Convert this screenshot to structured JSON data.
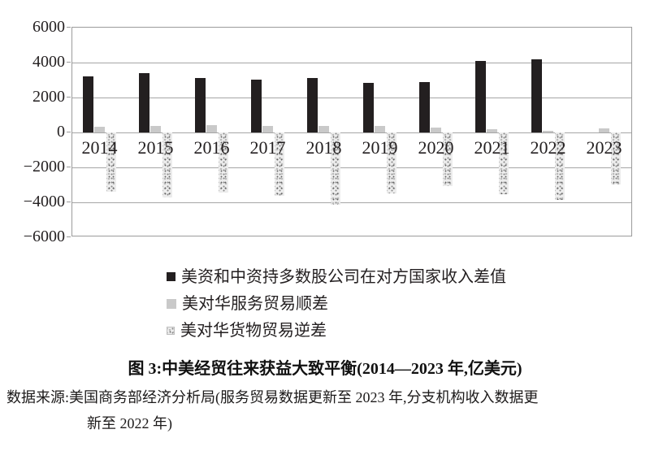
{
  "chart_data": {
    "type": "bar",
    "categories": [
      "2014",
      "2015",
      "2016",
      "2017",
      "2018",
      "2019",
      "2020",
      "2021",
      "2022",
      "2023"
    ],
    "series": [
      {
        "name": "美资和中资持多数股公司在对方国家收入差值",
        "color": "#231f20",
        "style": "solid",
        "values": [
          3220,
          3400,
          3120,
          3010,
          3110,
          2850,
          2880,
          4100,
          4190,
          null
        ]
      },
      {
        "name": "美对华服务贸易顺差",
        "color": "#c9c9c9",
        "style": "solid",
        "values": [
          330,
          360,
          430,
          390,
          390,
          350,
          260,
          190,
          100,
          230
        ]
      },
      {
        "name": "美对华货物贸易逆差",
        "color": "#ededed",
        "style": "speckle",
        "values": [
          -3380,
          -3710,
          -3450,
          -3650,
          -4140,
          -3470,
          -3090,
          -3520,
          -3870,
          -2980
        ]
      }
    ],
    "title": "图 3:中美经贸往来获益大致平衡(2014—2023 年,亿美元)",
    "xlabel": "",
    "ylabel": "",
    "ylim": [
      -6000,
      6000
    ],
    "grid": true,
    "legend_position": "below",
    "y_ticks": [
      {
        "label": "6000",
        "value": 6000
      },
      {
        "label": "4000",
        "value": 4000
      },
      {
        "label": "2000",
        "value": 2000
      },
      {
        "label": "0",
        "value": 0
      },
      {
        "label": "−2000",
        "value": -2000
      },
      {
        "label": "−4000",
        "value": -4000
      },
      {
        "label": "−6000",
        "value": -6000
      }
    ]
  },
  "caption": {
    "text": "图 3:中美经贸往来获益大致平衡(2014—2023 年,亿美元)"
  },
  "source": {
    "line1": "数据来源:美国商务部经济分析局(服务贸易数据更新至 2023 年,分支机构收入数据更",
    "line2": "新至 2022 年)"
  },
  "colors": {
    "bar_black": "#231f20",
    "bar_gray": "#c9c9c9",
    "speckle_base": "#ededed",
    "gridline": "#a6a6a6"
  }
}
